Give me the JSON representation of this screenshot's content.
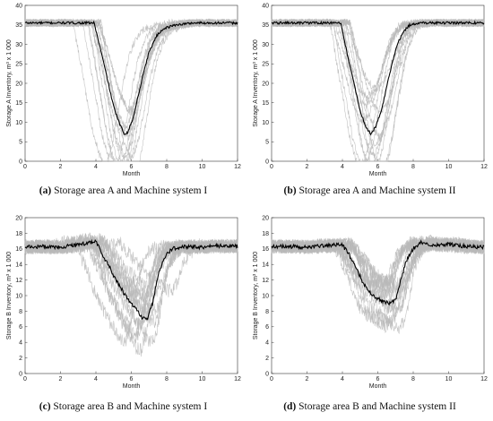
{
  "captions": [
    {
      "letter": "(a)",
      "text": "Storage area A and Machine system I"
    },
    {
      "letter": "(b)",
      "text": "Storage area A and Machine system II"
    },
    {
      "letter": "(c)",
      "text": "Storage area B and Machine system I"
    },
    {
      "letter": "(d)",
      "text": "Storage area B and Machine system II"
    }
  ],
  "colors": {
    "mean_line": "#000000",
    "sim_lines": "#b8b8b8",
    "axes": "#333333",
    "grid": "#dddddd"
  },
  "chart_data": [
    {
      "type": "line",
      "xlabel": "Month",
      "ylabel": "Storage A Inventory, m³ x 1 000",
      "xlim": [
        0,
        12
      ],
      "ylim": [
        0,
        40
      ],
      "xticks": [
        0,
        2,
        4,
        6,
        8,
        10,
        12
      ],
      "yticks": [
        0,
        5,
        10,
        15,
        20,
        25,
        30,
        35,
        40
      ],
      "series": [
        {
          "values_x": [
            0,
            1,
            2,
            3,
            3.9,
            4.3,
            4.7,
            5.0,
            5.3,
            5.6,
            5.8,
            6.1,
            6.4,
            6.7,
            7.0,
            7.4,
            7.8,
            8.5,
            9.5,
            10.5,
            12
          ],
          "values_y": [
            35.5,
            35.5,
            35.5,
            35.5,
            35.5,
            28,
            20,
            14,
            10,
            7,
            7.5,
            11,
            17,
            23,
            28,
            32,
            34,
            35,
            35.5,
            35.5,
            35.5
          ]
        }
      ]
    },
    {
      "type": "line",
      "xlabel": "Month",
      "ylabel": "Storage A Inventory, m³ x 1 000",
      "xlim": [
        0,
        12
      ],
      "ylim": [
        0,
        40
      ],
      "xticks": [
        0,
        2,
        4,
        6,
        8,
        10,
        12
      ],
      "yticks": [
        0,
        5,
        10,
        15,
        20,
        25,
        30,
        35,
        40
      ],
      "series": [
        {
          "values_x": [
            0,
            1,
            2,
            3,
            3.9,
            4.3,
            4.7,
            5.0,
            5.3,
            5.6,
            5.9,
            6.2,
            6.5,
            6.8,
            7.1,
            7.4,
            7.8,
            8.5,
            9.5,
            10.5,
            12
          ],
          "values_y": [
            35.5,
            35.5,
            35.5,
            35.5,
            35.5,
            27,
            19,
            13,
            9,
            7,
            9,
            13,
            19,
            25,
            30,
            33,
            35,
            35.5,
            35.5,
            35.5,
            35.5
          ]
        }
      ]
    },
    {
      "type": "line",
      "xlabel": "Month",
      "ylabel": "Storage B Inventory, m³ x 1 000",
      "xlim": [
        0,
        12
      ],
      "ylim": [
        0,
        20
      ],
      "xticks": [
        0,
        2,
        4,
        6,
        8,
        10,
        12
      ],
      "yticks": [
        0,
        2,
        4,
        6,
        8,
        10,
        12,
        14,
        16,
        18,
        20
      ],
      "series": [
        {
          "values_x": [
            0,
            1,
            2,
            3,
            4,
            4.3,
            4.7,
            5.0,
            5.4,
            5.8,
            6.2,
            6.6,
            6.9,
            7.2,
            7.5,
            7.9,
            8.3,
            9,
            10,
            11,
            12
          ],
          "values_y": [
            16.2,
            16.3,
            16.2,
            16.5,
            17,
            15.5,
            14,
            12.5,
            11,
            9.5,
            8.5,
            7.2,
            7,
            9,
            12.5,
            15,
            16,
            16.3,
            16.2,
            16.4,
            16.3
          ]
        }
      ]
    },
    {
      "type": "line",
      "xlabel": "Month",
      "ylabel": "Storage B Inventory, m³ x 1 000",
      "xlim": [
        0,
        12
      ],
      "ylim": [
        0,
        20
      ],
      "xticks": [
        0,
        2,
        4,
        6,
        8,
        10,
        12
      ],
      "yticks": [
        0,
        2,
        4,
        6,
        8,
        10,
        12,
        14,
        16,
        18,
        20
      ],
      "series": [
        {
          "values_x": [
            0,
            1,
            2,
            3,
            4,
            4.4,
            4.8,
            5.1,
            5.5,
            5.9,
            6.3,
            6.7,
            7.0,
            7.3,
            7.6,
            8.0,
            8.4,
            9,
            10,
            11,
            12
          ],
          "values_y": [
            16.3,
            16.3,
            16.2,
            16.4,
            16.5,
            15.2,
            13.5,
            12,
            10.5,
            9.8,
            9.3,
            9,
            9.5,
            12,
            14.5,
            16,
            16.8,
            16.5,
            16.6,
            16.3,
            16.2
          ]
        }
      ]
    }
  ]
}
